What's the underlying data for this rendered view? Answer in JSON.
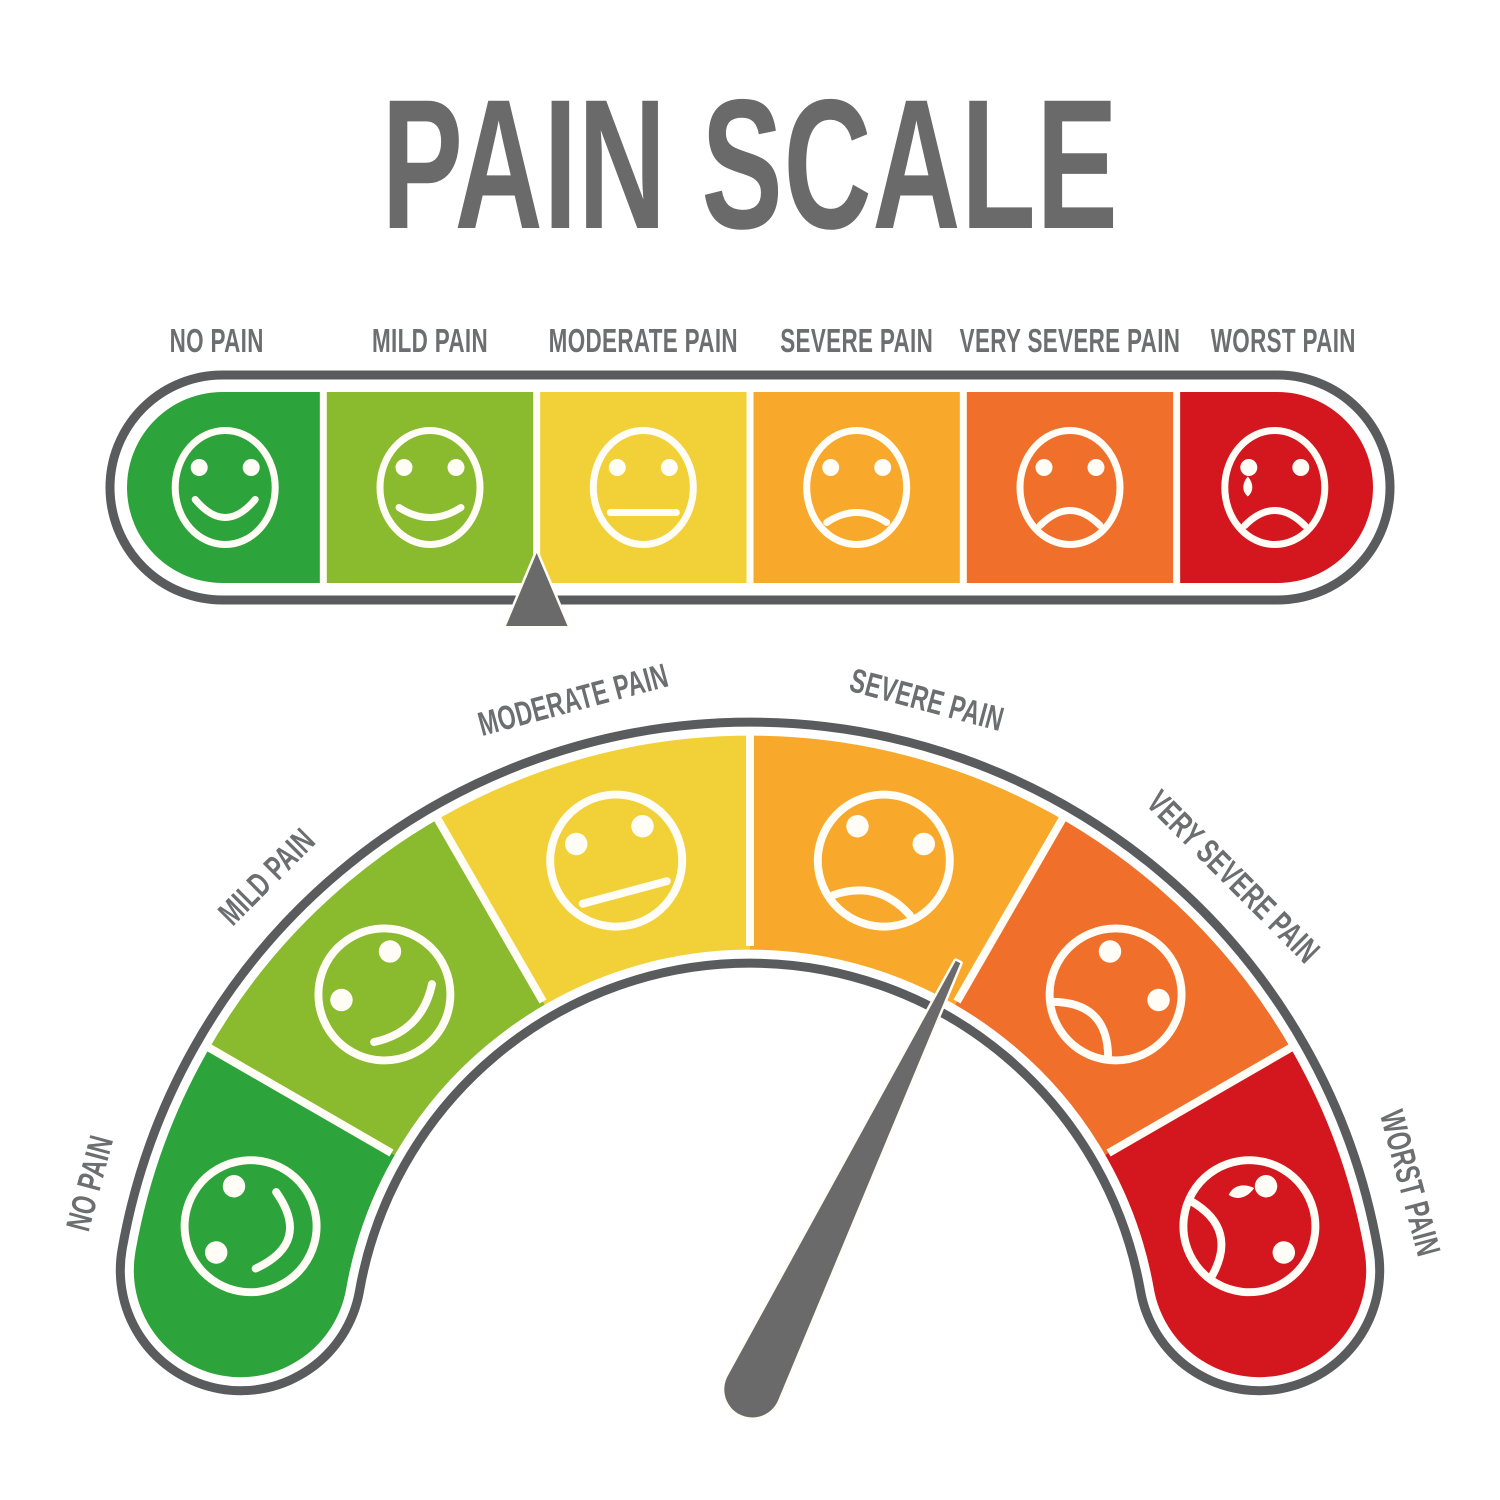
{
  "title": "PAIN SCALE",
  "palette": {
    "background": "#FFFFFF",
    "outline_gray": "#5A5B5D",
    "pointer_gray": "#6A6A6A",
    "title_text": "#6A6A6A",
    "label_text": "#6D6E70",
    "face_stroke": "#FFFDF5",
    "separator": "#FFFDF5"
  },
  "levels": [
    {
      "label": "NO PAIN",
      "color": "#2DA43B",
      "face": "happy"
    },
    {
      "label": "MILD PAIN",
      "color": "#8ABA2E",
      "face": "slight-smile"
    },
    {
      "label": "MODERATE PAIN",
      "color": "#F2D138",
      "face": "neutral"
    },
    {
      "label": "SEVERE PAIN",
      "color": "#F8A92B",
      "face": "slight-frown"
    },
    {
      "label": "VERY SEVERE PAIN",
      "color": "#F0702B",
      "face": "frown"
    },
    {
      "label": "WORST PAIN",
      "color": "#D4161E",
      "face": "crying"
    }
  ],
  "bar_scale": {
    "pointer_between": [
      "MILD PAIN",
      "MODERATE PAIN"
    ]
  },
  "gauge_scale": {
    "needle_between": [
      "SEVERE PAIN",
      "VERY SEVERE PAIN"
    ]
  }
}
